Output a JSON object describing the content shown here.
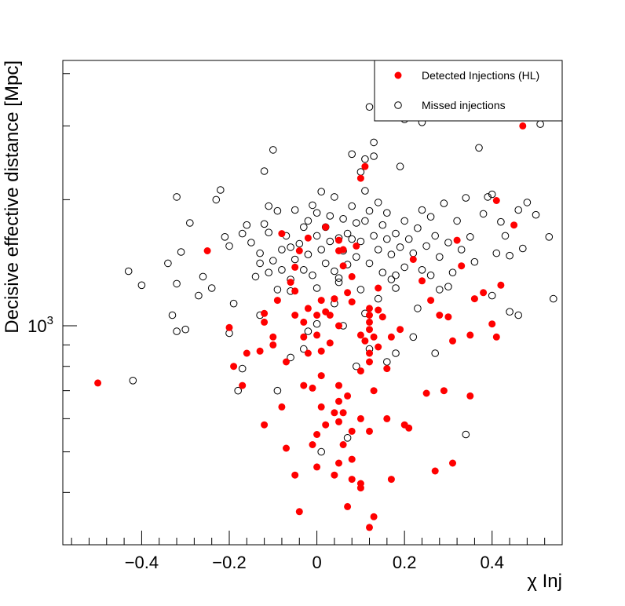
{
  "chart_data": {
    "type": "scatter",
    "xlabel": "χ Inj",
    "ylabel": "Decisive effective distance [Mpc]",
    "y_scale": "log",
    "xlim": [
      -0.58,
      0.56
    ],
    "ylim": [
      300,
      4300
    ],
    "x_ticks": [
      -0.4,
      -0.2,
      0,
      0.2,
      0.4
    ],
    "x_tick_labels": [
      "−0.4",
      "−0.2",
      "0",
      "0.2",
      "0.4"
    ],
    "y_major_ticks": [
      1000
    ],
    "y_major_tick_labels": [
      "10",
      "3"
    ],
    "legend_position": "top-right",
    "grid": false,
    "series": [
      {
        "name": "Detected Injections (HL)",
        "marker": "filled-circle",
        "color": "#ff0000",
        "points": [
          [
            -0.5,
            730
          ],
          [
            -0.25,
            1510
          ],
          [
            -0.2,
            990
          ],
          [
            -0.19,
            800
          ],
          [
            -0.17,
            720
          ],
          [
            -0.16,
            860
          ],
          [
            -0.13,
            870
          ],
          [
            -0.12,
            1020
          ],
          [
            -0.12,
            1070
          ],
          [
            -0.12,
            580
          ],
          [
            -0.1,
            940
          ],
          [
            -0.1,
            900
          ],
          [
            -0.08,
            640
          ],
          [
            -0.08,
            1660
          ],
          [
            -0.06,
            1270
          ],
          [
            -0.05,
            1060
          ],
          [
            -0.05,
            1210
          ],
          [
            -0.04,
            1510
          ],
          [
            -0.03,
            1020
          ],
          [
            -0.03,
            940
          ],
          [
            -0.02,
            1100
          ],
          [
            -0.02,
            860
          ],
          [
            -0.01,
            710
          ],
          [
            0.0,
            1060
          ],
          [
            0.0,
            950
          ],
          [
            0.01,
            760
          ],
          [
            0.01,
            870
          ],
          [
            0.01,
            1150
          ],
          [
            0.02,
            1080
          ],
          [
            0.03,
            1060
          ],
          [
            0.03,
            910
          ],
          [
            0.04,
            1160
          ],
          [
            0.05,
            1510
          ],
          [
            0.05,
            1000
          ],
          [
            0.05,
            660
          ],
          [
            0.06,
            1390
          ],
          [
            0.06,
            1520
          ],
          [
            0.07,
            1200
          ],
          [
            0.08,
            1310
          ],
          [
            0.08,
            1140
          ],
          [
            0.09,
            1550
          ],
          [
            0.1,
            950
          ],
          [
            0.11,
            920
          ],
          [
            0.12,
            1020
          ],
          [
            0.12,
            980
          ],
          [
            0.12,
            860
          ],
          [
            0.12,
            820
          ],
          [
            0.13,
            940
          ],
          [
            0.14,
            890
          ],
          [
            0.15,
            1050
          ],
          [
            0.16,
            790
          ],
          [
            0.17,
            940
          ],
          [
            0.19,
            980
          ],
          [
            0.22,
            1440
          ],
          [
            0.24,
            1280
          ],
          [
            0.26,
            1150
          ],
          [
            0.28,
            1060
          ],
          [
            0.3,
            1050
          ],
          [
            0.31,
            920
          ],
          [
            0.32,
            1600
          ],
          [
            0.33,
            1390
          ],
          [
            0.35,
            950
          ],
          [
            0.36,
            1160
          ],
          [
            0.38,
            1200
          ],
          [
            0.4,
            1010
          ],
          [
            0.41,
            940
          ],
          [
            0.41,
            1990
          ],
          [
            0.42,
            1250
          ],
          [
            0.45,
            1740
          ],
          [
            0.47,
            3000
          ],
          [
            0.25,
            690
          ],
          [
            0.29,
            700
          ],
          [
            0.35,
            680
          ],
          [
            0.12,
            1100
          ],
          [
            0.14,
            1230
          ],
          [
            0.11,
            2400
          ],
          [
            0.1,
            2250
          ],
          [
            0.05,
            1600
          ],
          [
            0.02,
            1720
          ],
          [
            -0.02,
            1620
          ],
          [
            -0.05,
            1380
          ],
          [
            -0.07,
            820
          ],
          [
            -0.09,
            1150
          ],
          [
            0.05,
            720
          ],
          [
            0.07,
            680
          ],
          [
            0.1,
            780
          ],
          [
            0.13,
            700
          ],
          [
            0.04,
            620
          ],
          [
            0.06,
            620
          ],
          [
            -0.03,
            720
          ],
          [
            0.01,
            640
          ],
          [
            0.02,
            580
          ],
          [
            -0.01,
            520
          ],
          [
            0.06,
            520
          ],
          [
            0.08,
            560
          ],
          [
            0.1,
            600
          ],
          [
            0.12,
            560
          ],
          [
            0.16,
            600
          ],
          [
            0.2,
            580
          ],
          [
            0.21,
            570
          ],
          [
            -0.07,
            510
          ],
          [
            -0.05,
            440
          ],
          [
            0.0,
            460
          ],
          [
            0.04,
            440
          ],
          [
            0.05,
            470
          ],
          [
            0.08,
            480
          ],
          [
            0.1,
            420
          ],
          [
            0.1,
            410
          ],
          [
            0.08,
            430
          ],
          [
            -0.04,
            360
          ],
          [
            0.07,
            370
          ],
          [
            0.13,
            350
          ],
          [
            0.12,
            330
          ],
          [
            0.17,
            430
          ],
          [
            0.27,
            450
          ],
          [
            0.31,
            470
          ],
          [
            0.0,
            550
          ],
          [
            0.05,
            590
          ],
          [
            0.12,
            1060
          ],
          [
            0.14,
            1090
          ]
        ]
      },
      {
        "name": "Missed injections",
        "marker": "open-circle",
        "color": "#000000",
        "points": [
          [
            -0.42,
            740
          ],
          [
            -0.4,
            1250
          ],
          [
            -0.43,
            1350
          ],
          [
            -0.33,
            1060
          ],
          [
            -0.32,
            970
          ],
          [
            -0.3,
            980
          ],
          [
            -0.34,
            1410
          ],
          [
            -0.32,
            1260
          ],
          [
            -0.32,
            2030
          ],
          [
            -0.31,
            1500
          ],
          [
            -0.29,
            1760
          ],
          [
            -0.27,
            1180
          ],
          [
            -0.26,
            1310
          ],
          [
            -0.24,
            1230
          ],
          [
            -0.23,
            2000
          ],
          [
            -0.22,
            2110
          ],
          [
            -0.21,
            1630
          ],
          [
            -0.2,
            1550
          ],
          [
            -0.2,
            960
          ],
          [
            -0.19,
            1130
          ],
          [
            -0.18,
            700
          ],
          [
            -0.17,
            790
          ],
          [
            -0.17,
            1660
          ],
          [
            -0.16,
            1740
          ],
          [
            -0.15,
            1580
          ],
          [
            -0.14,
            1310
          ],
          [
            -0.13,
            1490
          ],
          [
            -0.13,
            1410
          ],
          [
            -0.12,
            1750
          ],
          [
            -0.11,
            1670
          ],
          [
            -0.11,
            1340
          ],
          [
            -0.1,
            1430
          ],
          [
            -0.09,
            1880
          ],
          [
            -0.09,
            1220
          ],
          [
            -0.08,
            1520
          ],
          [
            -0.08,
            1360
          ],
          [
            -0.07,
            1640
          ],
          [
            -0.06,
            1540
          ],
          [
            -0.06,
            1210
          ],
          [
            -0.05,
            1440
          ],
          [
            -0.05,
            1890
          ],
          [
            -0.04,
            1570
          ],
          [
            -0.03,
            1720
          ],
          [
            -0.03,
            1360
          ],
          [
            -0.02,
            1780
          ],
          [
            -0.02,
            1480
          ],
          [
            -0.01,
            1940
          ],
          [
            -0.01,
            1320
          ],
          [
            0.0,
            1640
          ],
          [
            0.0,
            1860
          ],
          [
            0.01,
            2090
          ],
          [
            0.01,
            1520
          ],
          [
            0.02,
            1720
          ],
          [
            0.02,
            1410
          ],
          [
            0.03,
            1590
          ],
          [
            0.03,
            1830
          ],
          [
            0.04,
            2030
          ],
          [
            0.04,
            1350
          ],
          [
            0.05,
            1620
          ],
          [
            0.05,
            1270
          ],
          [
            0.06,
            1800
          ],
          [
            0.06,
            1510
          ],
          [
            0.07,
            1660
          ],
          [
            0.07,
            1400
          ],
          [
            0.08,
            1930
          ],
          [
            0.08,
            1610
          ],
          [
            0.09,
            1760
          ],
          [
            0.09,
            1460
          ],
          [
            0.1,
            2330
          ],
          [
            0.1,
            1590
          ],
          [
            0.11,
            2100
          ],
          [
            0.11,
            1780
          ],
          [
            0.12,
            1880
          ],
          [
            0.12,
            1410
          ],
          [
            0.13,
            2540
          ],
          [
            0.13,
            1640
          ],
          [
            0.14,
            1970
          ],
          [
            0.14,
            1520
          ],
          [
            0.15,
            1740
          ],
          [
            0.15,
            1340
          ],
          [
            0.16,
            1860
          ],
          [
            0.16,
            1610
          ],
          [
            0.17,
            1480
          ],
          [
            0.17,
            1290
          ],
          [
            0.18,
            1660
          ],
          [
            0.19,
            2400
          ],
          [
            0.19,
            1540
          ],
          [
            0.2,
            1780
          ],
          [
            0.2,
            1380
          ],
          [
            0.21,
            1610
          ],
          [
            0.22,
            1490
          ],
          [
            0.23,
            1710
          ],
          [
            0.24,
            1890
          ],
          [
            0.24,
            1360
          ],
          [
            0.25,
            1550
          ],
          [
            0.26,
            1820
          ],
          [
            0.27,
            1640
          ],
          [
            0.28,
            1460
          ],
          [
            0.29,
            1960
          ],
          [
            0.3,
            1580
          ],
          [
            0.31,
            1340
          ],
          [
            0.32,
            1780
          ],
          [
            0.33,
            1520
          ],
          [
            0.34,
            2020
          ],
          [
            0.35,
            1630
          ],
          [
            0.36,
            1420
          ],
          [
            0.37,
            2660
          ],
          [
            0.38,
            1850
          ],
          [
            0.39,
            2030
          ],
          [
            0.4,
            2060
          ],
          [
            0.41,
            1490
          ],
          [
            0.42,
            1770
          ],
          [
            0.43,
            1640
          ],
          [
            0.44,
            1470
          ],
          [
            0.46,
            1890
          ],
          [
            0.47,
            1530
          ],
          [
            0.48,
            1970
          ],
          [
            0.5,
            1840
          ],
          [
            0.51,
            3030
          ],
          [
            0.53,
            1630
          ],
          [
            0.54,
            1160
          ],
          [
            0.46,
            1060
          ],
          [
            0.34,
            550
          ],
          [
            0.27,
            860
          ],
          [
            0.22,
            940
          ],
          [
            0.18,
            860
          ],
          [
            0.16,
            820
          ],
          [
            0.12,
            880
          ],
          [
            0.09,
            800
          ],
          [
            0.07,
            540
          ],
          [
            0.01,
            500
          ],
          [
            -0.03,
            880
          ],
          [
            -0.06,
            840
          ],
          [
            -0.09,
            700
          ],
          [
            -0.13,
            1060
          ],
          [
            -0.1,
            2630
          ],
          [
            -0.11,
            1930
          ],
          [
            -0.12,
            2340
          ],
          [
            0.08,
            2570
          ],
          [
            0.11,
            2500
          ],
          [
            0.12,
            3330
          ],
          [
            0.13,
            2740
          ],
          [
            0.2,
            3110
          ],
          [
            0.24,
            3060
          ],
          [
            0.11,
            1070
          ],
          [
            0.06,
            1000
          ],
          [
            -0.02,
            970
          ],
          [
            0.0,
            1010
          ],
          [
            0.04,
            1130
          ],
          [
            0.18,
            1230
          ],
          [
            0.23,
            1100
          ],
          [
            0.3,
            1240
          ],
          [
            0.4,
            1180
          ],
          [
            0.44,
            1080
          ],
          [
            0.26,
            1320
          ],
          [
            0.14,
            1160
          ],
          [
            -0.06,
            1290
          ],
          [
            0.0,
            1230
          ],
          [
            0.05,
            1300
          ],
          [
            0.1,
            1220
          ],
          [
            0.18,
            1320
          ],
          [
            0.28,
            1220
          ]
        ]
      }
    ]
  }
}
